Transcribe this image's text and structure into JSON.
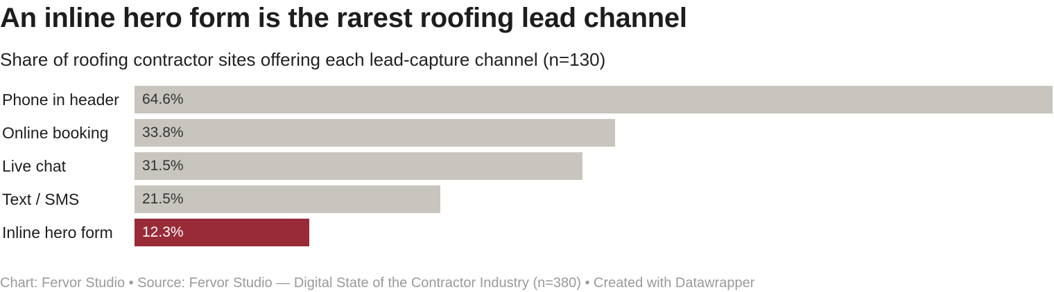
{
  "title": "An inline hero form is the rarest roofing lead channel",
  "subtitle": "Share of roofing contractor sites offering each lead-capture channel (n=130)",
  "footer": "Chart: Fervor Studio • Source: Fervor Studio — Digital State of the Contractor Industry (n=380) • Created with Datawrapper",
  "chart_data": {
    "type": "bar",
    "orientation": "horizontal",
    "title": "An inline hero form is the rarest roofing lead channel",
    "subtitle": "Share of roofing contractor sites offering each lead-capture channel (n=130)",
    "categories": [
      "Phone in header",
      "Online booking",
      "Live chat",
      "Text / SMS",
      "Inline hero form"
    ],
    "values": [
      64.6,
      33.8,
      31.5,
      21.5,
      12.3
    ],
    "value_labels": [
      "64.6%",
      "33.8%",
      "31.5%",
      "21.5%",
      "12.3%"
    ],
    "xlim": [
      0,
      64.6
    ],
    "grid": false,
    "colors": {
      "default": "#c8c5be",
      "highlight": "#992b38",
      "label_on_default": "#333333",
      "label_on_highlight": "#ffffff"
    },
    "highlight_index": 4
  }
}
